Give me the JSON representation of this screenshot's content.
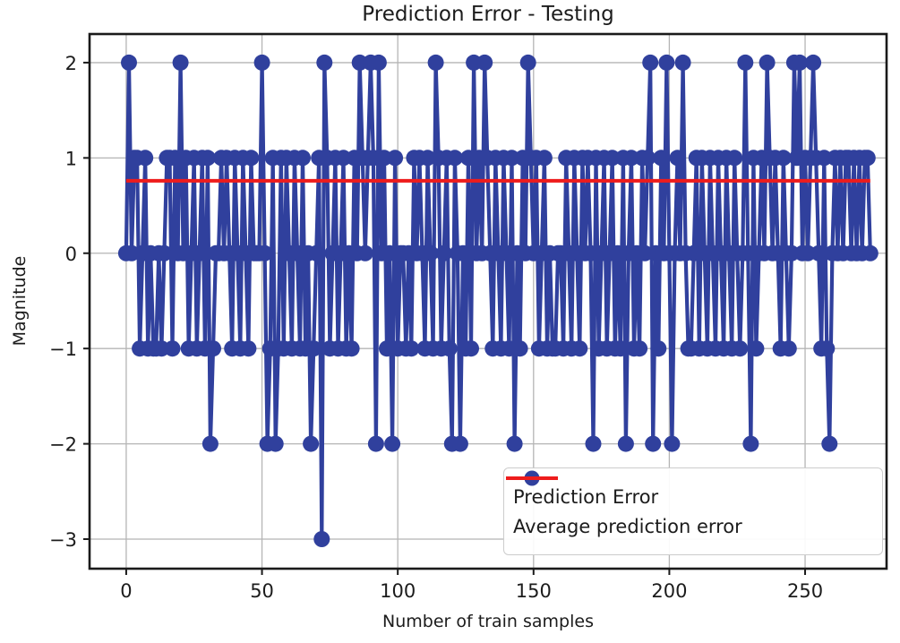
{
  "figure": {
    "title": "Prediction Error - Testing",
    "xlabel": "Number of train samples",
    "ylabel": "Magnitude"
  },
  "legend": {
    "series1_label": "Prediction Error",
    "series2_label": "Average prediction error"
  },
  "chart_data": {
    "type": "line",
    "title": "Prediction Error - Testing",
    "xlabel": "Number of train samples",
    "ylabel": "Magnitude",
    "x_start": 0,
    "x_step": 1,
    "values": [
      0,
      2,
      0,
      1,
      1,
      -1,
      0,
      1,
      -1,
      0,
      -1,
      -1,
      0,
      -1,
      0,
      1,
      1,
      -1,
      1,
      0,
      2,
      0,
      1,
      -1,
      0,
      1,
      -1,
      0,
      1,
      -1,
      1,
      -2,
      -1,
      0,
      0,
      1,
      0,
      1,
      0,
      -1,
      1,
      0,
      -1,
      1,
      0,
      -1,
      1,
      0,
      0,
      0,
      2,
      0,
      -2,
      -1,
      1,
      -2,
      -1,
      1,
      -1,
      1,
      0,
      -1,
      1,
      0,
      -1,
      1,
      -1,
      0,
      -2,
      -1,
      0,
      1,
      -3,
      2,
      1,
      -1,
      0,
      1,
      -1,
      0,
      1,
      -1,
      0,
      -1,
      1,
      0,
      2,
      1,
      0,
      1,
      2,
      1,
      -2,
      2,
      0,
      1,
      -1,
      0,
      -2,
      1,
      -1,
      0,
      0,
      -1,
      0,
      -1,
      1,
      0,
      1,
      0,
      -1,
      1,
      0,
      -1,
      2,
      1,
      -1,
      0,
      1,
      -1,
      -2,
      1,
      0,
      -2,
      0,
      -1,
      1,
      -1,
      2,
      0,
      1,
      0,
      2,
      1,
      0,
      -1,
      1,
      0,
      -1,
      1,
      0,
      -1,
      1,
      -2,
      0,
      -1,
      1,
      0,
      2,
      1,
      0,
      1,
      -1,
      0,
      1,
      -1,
      0,
      -1,
      -1,
      0,
      0,
      -1,
      1,
      0,
      -1,
      1,
      0,
      -1,
      1,
      0,
      1,
      0,
      -2,
      1,
      -1,
      0,
      1,
      -1,
      0,
      1,
      -1,
      0,
      -1,
      1,
      -2,
      0,
      1,
      -1,
      0,
      -1,
      1,
      0,
      1,
      2,
      -2,
      0,
      -1,
      1,
      0,
      2,
      0,
      -2,
      0,
      1,
      0,
      2,
      0,
      -1,
      -1,
      0,
      1,
      -1,
      1,
      0,
      -1,
      1,
      0,
      -1,
      1,
      0,
      -1,
      1,
      0,
      -1,
      1,
      0,
      -1,
      0,
      2,
      0,
      -2,
      1,
      -1,
      0,
      1,
      0,
      2,
      1,
      0,
      1,
      0,
      -1,
      1,
      0,
      -1,
      0,
      2,
      1,
      2,
      0,
      1,
      0,
      1,
      2,
      1,
      0,
      -1,
      1,
      -1,
      -2,
      0,
      1,
      0,
      1,
      0,
      1,
      1,
      0,
      1,
      0,
      1,
      0,
      1,
      1,
      0
    ],
    "average_line": 0.76,
    "xticks": [
      0,
      50,
      100,
      150,
      200,
      250
    ],
    "yticks": [
      2,
      1,
      0,
      -1,
      -2,
      -3
    ],
    "xlim": [
      -13.5,
      280
    ],
    "ylim": [
      -3.31,
      2.3
    ],
    "grid": true,
    "grid_color": "#b5b5b5",
    "legend_position": "lower right",
    "series_color": "#30409d",
    "average_color": "#ee1c1c",
    "spine_color": "#1a1a1a",
    "tick_label_color": "#1c1c1c"
  }
}
